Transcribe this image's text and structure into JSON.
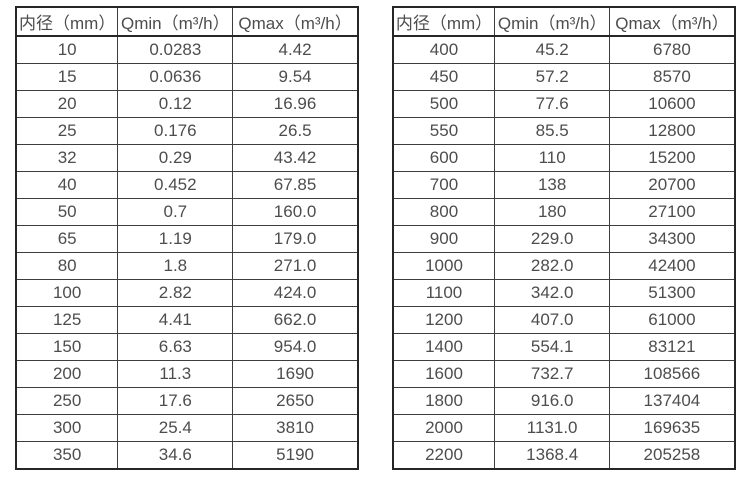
{
  "colors": {
    "background": "#ffffff",
    "border_outer": "#262626",
    "border_inner": "#3d3d3d",
    "text": "#4d4d4d"
  },
  "left_table": {
    "headers": [
      "内径（mm）",
      "Qmin（m³/h）",
      "Qmax（m³/h）"
    ],
    "rows": [
      [
        "10",
        "0.0283",
        "4.42"
      ],
      [
        "15",
        "0.0636",
        "9.54"
      ],
      [
        "20",
        "0.12",
        "16.96"
      ],
      [
        "25",
        "0.176",
        "26.5"
      ],
      [
        "32",
        "0.29",
        "43.42"
      ],
      [
        "40",
        "0.452",
        "67.85"
      ],
      [
        "50",
        "0.7",
        "160.0"
      ],
      [
        "65",
        "1.19",
        "179.0"
      ],
      [
        "80",
        "1.8",
        "271.0"
      ],
      [
        "100",
        "2.82",
        "424.0"
      ],
      [
        "125",
        "4.41",
        "662.0"
      ],
      [
        "150",
        "6.63",
        "954.0"
      ],
      [
        "200",
        "11.3",
        "1690"
      ],
      [
        "250",
        "17.6",
        "2650"
      ],
      [
        "300",
        "25.4",
        "3810"
      ],
      [
        "350",
        "34.6",
        "5190"
      ]
    ]
  },
  "right_table": {
    "headers": [
      "内径（mm）",
      "Qmin（m³/h）",
      "Qmax（m³/h）"
    ],
    "rows": [
      [
        "400",
        "45.2",
        "6780"
      ],
      [
        "450",
        "57.2",
        "8570"
      ],
      [
        "500",
        "77.6",
        "10600"
      ],
      [
        "550",
        "85.5",
        "12800"
      ],
      [
        "600",
        "110",
        "15200"
      ],
      [
        "700",
        "138",
        "20700"
      ],
      [
        "800",
        "180",
        "27100"
      ],
      [
        "900",
        "229.0",
        "34300"
      ],
      [
        "1000",
        "282.0",
        "42400"
      ],
      [
        "1100",
        "342.0",
        "51300"
      ],
      [
        "1200",
        "407.0",
        "61000"
      ],
      [
        "1400",
        "554.1",
        "83121"
      ],
      [
        "1600",
        "732.7",
        "108566"
      ],
      [
        "1800",
        "916.0",
        "137404"
      ],
      [
        "2000",
        "1131.0",
        "169635"
      ],
      [
        "2200",
        "1368.4",
        "205258"
      ]
    ]
  }
}
